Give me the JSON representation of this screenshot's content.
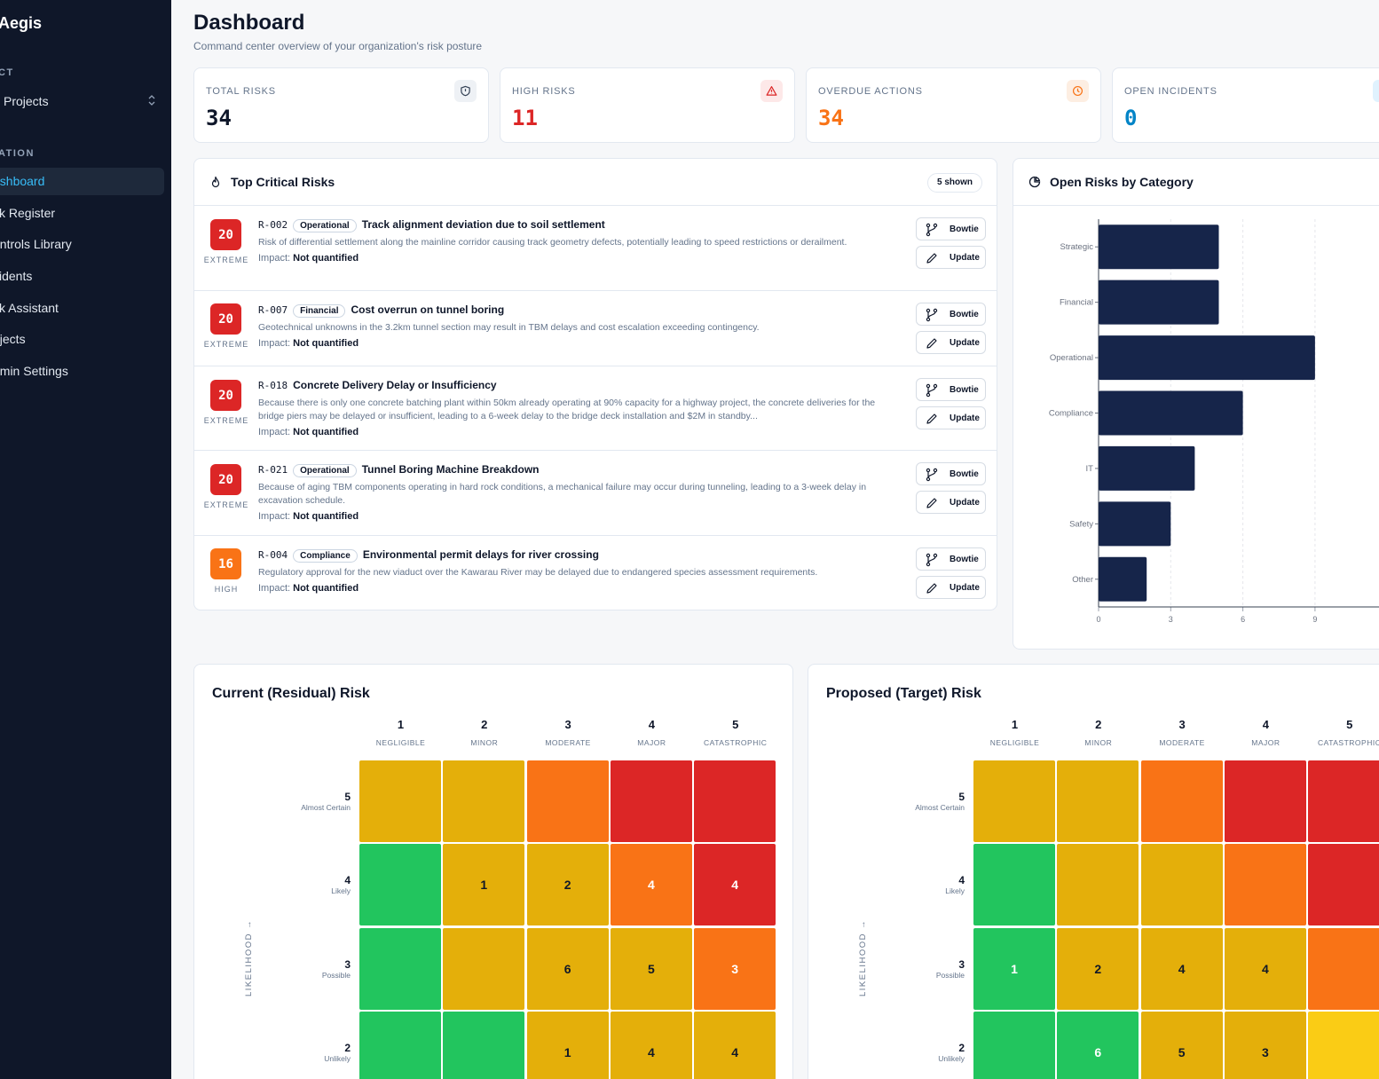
{
  "sidebar": {
    "brand": "Aegis",
    "section_project": "CT",
    "project_select": "Projects",
    "section_nav": "ATION",
    "items": [
      {
        "label": "ashboard",
        "active": true
      },
      {
        "label": "sk Register"
      },
      {
        "label": "ontrols Library"
      },
      {
        "label": "cidents"
      },
      {
        "label": "sk Assistant"
      },
      {
        "label": "ojects"
      },
      {
        "label": "dmin Settings"
      }
    ]
  },
  "header": {
    "title": "Dashboard",
    "subtitle": "Command center overview of your organization's risk posture"
  },
  "kpis": [
    {
      "label": "TOTAL RISKS",
      "value": "34",
      "color": "#0f172a",
      "icon": "shield-icon"
    },
    {
      "label": "HIGH RISKS",
      "value": "11",
      "color": "#dc2626",
      "icon": "alert-triangle-icon"
    },
    {
      "label": "OVERDUE ACTIONS",
      "value": "34",
      "color": "#f97316",
      "icon": "clock-icon"
    },
    {
      "label": "OPEN INCIDENTS",
      "value": "0",
      "color": "#0284c7",
      "icon": "incident-icon"
    }
  ],
  "top_risks": {
    "title": "Top Critical Risks",
    "shown": "5 shown",
    "impact_label": "Impact:",
    "bowtie_label": "Bowtie",
    "update_label": "Update",
    "items": [
      {
        "score": "20",
        "level": "EXTREME",
        "id": "R-002",
        "category": "Operational",
        "title": "Track alignment deviation due to soil settlement",
        "desc": "Risk of differential settlement along the mainline corridor causing track geometry defects, potentially leading to speed restrictions or derailment.",
        "impact": "Not quantified",
        "color": "#dc2626"
      },
      {
        "score": "20",
        "level": "EXTREME",
        "id": "R-007",
        "category": "Financial",
        "title": "Cost overrun on tunnel boring",
        "desc": "Geotechnical unknowns in the 3.2km tunnel section may result in TBM delays and cost escalation exceeding contingency.",
        "impact": "Not quantified",
        "color": "#dc2626"
      },
      {
        "score": "20",
        "level": "EXTREME",
        "id": "R-018",
        "category": "",
        "title": "Concrete Delivery Delay or Insufficiency",
        "desc": "Because there is only one concrete batching plant within 50km already operating at 90% capacity for a highway project, the concrete deliveries for the bridge piers may be delayed or insufficient, leading to a 6-week delay to the bridge deck installation and $2M in standby...",
        "impact": "Not quantified",
        "color": "#dc2626"
      },
      {
        "score": "20",
        "level": "EXTREME",
        "id": "R-021",
        "category": "Operational",
        "title": "Tunnel Boring Machine Breakdown",
        "desc": "Because of aging TBM components operating in hard rock conditions, a mechanical failure may occur during tunneling, leading to a 3-week delay in excavation schedule.",
        "impact": "Not quantified",
        "color": "#dc2626"
      },
      {
        "score": "16",
        "level": "HIGH",
        "id": "R-004",
        "category": "Compliance",
        "title": "Environmental permit delays for river crossing",
        "desc": "Regulatory approval for the new viaduct over the Kawarau River may be delayed due to endangered species assessment requirements.",
        "impact": "Not quantified",
        "color": "#f97316"
      }
    ]
  },
  "category_chart": {
    "title": "Open Risks by Category",
    "chart_data": {
      "type": "bar",
      "orientation": "horizontal",
      "categories": [
        "Strategic",
        "Financial",
        "Operational",
        "Compliance",
        "IT",
        "Safety",
        "Other"
      ],
      "values": [
        5,
        5,
        9,
        6,
        4,
        3,
        2
      ],
      "xticks": [
        "0",
        "3",
        "6",
        "9"
      ],
      "xlim": [
        0,
        12
      ],
      "grid": "vertical dashed",
      "bar_color": "#16254a"
    }
  },
  "heatmaps": [
    {
      "title": "Current (Residual) Risk",
      "y_axis": "LIKELIHOOD →",
      "cols": [
        {
          "n": "1",
          "s": "NEGLIGIBLE"
        },
        {
          "n": "2",
          "s": "MINOR"
        },
        {
          "n": "3",
          "s": "MODERATE"
        },
        {
          "n": "4",
          "s": "MAJOR"
        },
        {
          "n": "5",
          "s": "CATASTROPHIC"
        }
      ],
      "rows": [
        {
          "n": "5",
          "s": "Almost Certain"
        },
        {
          "n": "4",
          "s": "Likely"
        },
        {
          "n": "3",
          "s": "Possible"
        },
        {
          "n": "2",
          "s": "Unlikely"
        }
      ],
      "colors": [
        [
          "#e4af0a",
          "#e4af0a",
          "#f97316",
          "#dc2626",
          "#dc2626"
        ],
        [
          "#22c55e",
          "#e4af0a",
          "#e4af0a",
          "#f97316",
          "#dc2626"
        ],
        [
          "#22c55e",
          "#e4af0a",
          "#e4af0a",
          "#e4af0a",
          "#f97316"
        ],
        [
          "#22c55e",
          "#22c55e",
          "#e4af0a",
          "#e4af0a",
          "#e4af0a"
        ]
      ],
      "counts": [
        [
          "",
          "",
          "",
          "",
          ""
        ],
        [
          "",
          "1",
          "2",
          "4",
          "4"
        ],
        [
          "",
          "",
          "6",
          "5",
          "3"
        ],
        [
          "",
          "",
          "1",
          "4",
          "4"
        ]
      ]
    },
    {
      "title": "Proposed (Target) Risk",
      "y_axis": "LIKELIHOOD →",
      "cols": [
        {
          "n": "1",
          "s": "NEGLIGIBLE"
        },
        {
          "n": "2",
          "s": "MINOR"
        },
        {
          "n": "3",
          "s": "MODERATE"
        },
        {
          "n": "4",
          "s": "MAJOR"
        },
        {
          "n": "5",
          "s": "CATASTROPHIC"
        }
      ],
      "rows": [
        {
          "n": "5",
          "s": "Almost Certain"
        },
        {
          "n": "4",
          "s": "Likely"
        },
        {
          "n": "3",
          "s": "Possible"
        },
        {
          "n": "2",
          "s": "Unlikely"
        }
      ],
      "colors": [
        [
          "#e4af0a",
          "#e4af0a",
          "#f97316",
          "#dc2626",
          "#dc2626"
        ],
        [
          "#22c55e",
          "#e4af0a",
          "#e4af0a",
          "#f97316",
          "#dc2626"
        ],
        [
          "#22c55e",
          "#e4af0a",
          "#e4af0a",
          "#e4af0a",
          "#f97316"
        ],
        [
          "#22c55e",
          "#22c55e",
          "#e4af0a",
          "#e4af0a",
          "#facc15"
        ]
      ],
      "counts": [
        [
          "",
          "",
          "",
          "",
          ""
        ],
        [
          "",
          "",
          "",
          "",
          ""
        ],
        [
          "1",
          "2",
          "4",
          "4",
          ""
        ],
        [
          "",
          "6",
          "5",
          "3",
          ""
        ]
      ]
    }
  ]
}
